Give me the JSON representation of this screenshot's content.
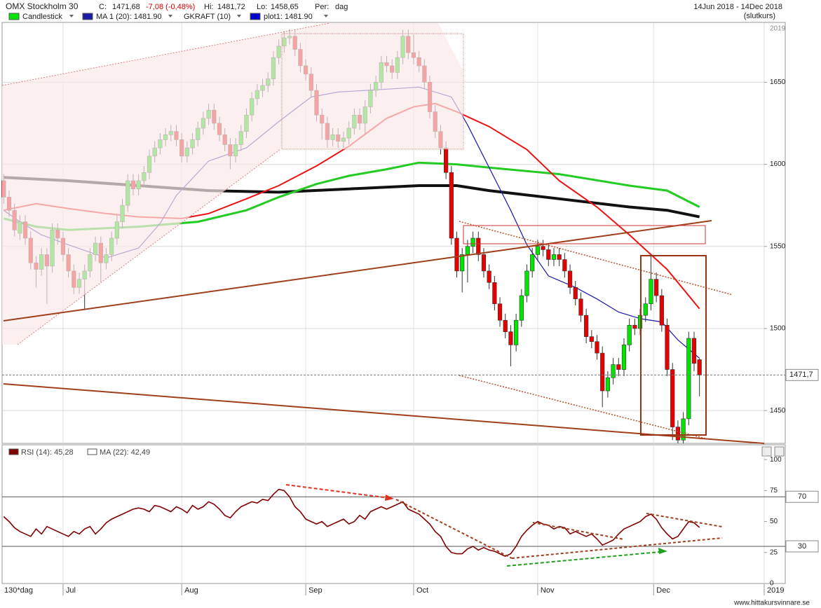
{
  "header": {
    "title": "OMX Stockholm 30",
    "c_label": "C:",
    "c_value": "1471,68",
    "change": "-7,08 (-0,48%)",
    "hi_label": "Hi:",
    "hi_value": "1481,72",
    "lo_label": "Lo:",
    "lo_value": "1458,65",
    "per_label": "Per:",
    "per_value": "dag",
    "date_range": "14Jun 2018 - 14Dec 2018",
    "price_type": "(slutkurs)"
  },
  "chart_data": [
    {
      "type": "candlestick",
      "ylim": [
        1430,
        1686
      ],
      "yticks": [
        1450,
        1500,
        1550,
        1600,
        1650
      ],
      "xlim": [
        -0.3,
        141
      ],
      "grid": true,
      "year_label": "2019",
      "last_label": "1471,7",
      "up_color": "#00e600",
      "down_color": "#e60000",
      "legend": [
        {
          "label": "Candlestick",
          "color": "#00e600"
        },
        {
          "label": "MA 1 (20): 1481.90",
          "color": "#1a1aa6"
        },
        {
          "label": "GKRAFT (10)"
        },
        {
          "label": "plot1: 1481.90",
          "color": "#0000cc"
        }
      ],
      "open": [
        1590,
        1580,
        1572,
        1558,
        1565,
        1555,
        1540,
        1536,
        1545,
        1538,
        1560,
        1555,
        1545,
        1535,
        1525,
        1530,
        1535,
        1545,
        1552,
        1540,
        1545,
        1555,
        1565,
        1575,
        1590,
        1585,
        1590,
        1595,
        1605,
        1610,
        1615,
        1618,
        1620,
        1615,
        1605,
        1610,
        1615,
        1622,
        1628,
        1633,
        1625,
        1618,
        1612,
        1605,
        1612,
        1620,
        1630,
        1640,
        1645,
        1648,
        1652,
        1665,
        1672,
        1677,
        1678,
        1670,
        1660,
        1655,
        1645,
        1630,
        1625,
        1615,
        1618,
        1614,
        1616,
        1622,
        1630,
        1625,
        1635,
        1645,
        1650,
        1662,
        1660,
        1656,
        1665,
        1678,
        1668,
        1665,
        1660,
        1650,
        1632,
        1620,
        1610,
        1595,
        1555,
        1535,
        1545,
        1550,
        1555,
        1545,
        1535,
        1528,
        1515,
        1505,
        1498,
        1490,
        1505,
        1520,
        1535,
        1545,
        1550,
        1548,
        1542,
        1545,
        1542,
        1535,
        1525,
        1518,
        1508,
        1495,
        1492,
        1485,
        1462,
        1470,
        1478,
        1475,
        1490,
        1502,
        1500,
        1508,
        1515,
        1530,
        1520,
        1502,
        1475,
        1440,
        1432,
        1445,
        1494,
        1481
      ],
      "high": [
        1594,
        1584,
        1576,
        1569,
        1569,
        1559,
        1544,
        1549,
        1549,
        1564,
        1564,
        1559,
        1549,
        1539,
        1534,
        1539,
        1549,
        1556,
        1556,
        1549,
        1559,
        1569,
        1579,
        1594,
        1594,
        1594,
        1599,
        1609,
        1614,
        1619,
        1622,
        1624,
        1624,
        1619,
        1614,
        1619,
        1626,
        1632,
        1637,
        1637,
        1629,
        1622,
        1616,
        1616,
        1624,
        1634,
        1644,
        1649,
        1652,
        1656,
        1669,
        1676,
        1681,
        1682,
        1682,
        1674,
        1664,
        1659,
        1649,
        1634,
        1629,
        1622,
        1622,
        1620,
        1626,
        1634,
        1634,
        1639,
        1649,
        1654,
        1666,
        1666,
        1664,
        1669,
        1682,
        1682,
        1679,
        1669,
        1664,
        1654,
        1636,
        1624,
        1614,
        1599,
        1559,
        1549,
        1554,
        1559,
        1559,
        1549,
        1539,
        1532,
        1519,
        1509,
        1502,
        1509,
        1524,
        1539,
        1549,
        1554,
        1554,
        1552,
        1549,
        1549,
        1546,
        1539,
        1529,
        1522,
        1512,
        1499,
        1496,
        1489,
        1474,
        1482,
        1482,
        1494,
        1506,
        1506,
        1512,
        1519,
        1545,
        1534,
        1524,
        1506,
        1479,
        1444,
        1449,
        1498,
        1498,
        1481.72
      ],
      "low": [
        1576,
        1568,
        1556,
        1554,
        1551,
        1536,
        1525,
        1532,
        1515,
        1534,
        1551,
        1541,
        1531,
        1521,
        1521,
        1512,
        1531,
        1541,
        1528,
        1536,
        1541,
        1551,
        1561,
        1571,
        1581,
        1581,
        1586,
        1591,
        1601,
        1606,
        1611,
        1614,
        1611,
        1601,
        1601,
        1606,
        1611,
        1618,
        1624,
        1621,
        1614,
        1608,
        1597,
        1601,
        1608,
        1616,
        1626,
        1636,
        1641,
        1644,
        1648,
        1661,
        1668,
        1673,
        1666,
        1656,
        1651,
        1641,
        1626,
        1615,
        1610,
        1611,
        1610,
        1610,
        1612,
        1618,
        1621,
        1618,
        1631,
        1641,
        1646,
        1656,
        1652,
        1652,
        1661,
        1664,
        1661,
        1656,
        1646,
        1628,
        1616,
        1606,
        1591,
        1551,
        1531,
        1522,
        1528,
        1546,
        1541,
        1531,
        1524,
        1511,
        1501,
        1494,
        1477,
        1486,
        1501,
        1516,
        1531,
        1541,
        1544,
        1538,
        1538,
        1538,
        1531,
        1521,
        1514,
        1504,
        1491,
        1488,
        1481,
        1452,
        1458,
        1466,
        1471,
        1471,
        1486,
        1496,
        1496,
        1504,
        1511,
        1516,
        1498,
        1471,
        1432,
        1430,
        1430,
        1441,
        1474,
        1458.65
      ],
      "close": [
        1580,
        1572,
        1560,
        1565,
        1555,
        1540,
        1536,
        1545,
        1538,
        1560,
        1555,
        1545,
        1535,
        1525,
        1530,
        1535,
        1545,
        1552,
        1540,
        1545,
        1555,
        1565,
        1575,
        1590,
        1585,
        1590,
        1595,
        1605,
        1610,
        1615,
        1618,
        1620,
        1615,
        1605,
        1610,
        1615,
        1622,
        1628,
        1633,
        1625,
        1618,
        1612,
        1605,
        1612,
        1620,
        1630,
        1640,
        1645,
        1648,
        1652,
        1665,
        1672,
        1677,
        1678,
        1670,
        1660,
        1655,
        1645,
        1630,
        1625,
        1615,
        1618,
        1614,
        1616,
        1622,
        1630,
        1625,
        1635,
        1645,
        1650,
        1662,
        1660,
        1656,
        1665,
        1678,
        1668,
        1665,
        1660,
        1650,
        1632,
        1620,
        1610,
        1595,
        1555,
        1535,
        1545,
        1550,
        1555,
        1545,
        1535,
        1528,
        1515,
        1505,
        1498,
        1490,
        1505,
        1520,
        1535,
        1545,
        1550,
        1548,
        1542,
        1545,
        1542,
        1535,
        1525,
        1518,
        1508,
        1495,
        1492,
        1485,
        1462,
        1470,
        1478,
        1475,
        1490,
        1502,
        1500,
        1508,
        1515,
        1530,
        1520,
        1502,
        1475,
        1440,
        1432,
        1445,
        1494,
        1478.76,
        1471.68
      ],
      "series": [
        {
          "color": "#111111",
          "width": 4,
          "x": [
            0,
            12,
            25,
            38,
            51,
            64,
            77,
            84,
            90,
            103,
            116,
            123,
            129
          ],
          "values": [
            1592,
            1590,
            1587,
            1584,
            1583,
            1585,
            1587,
            1587,
            1584,
            1579,
            1574,
            1572,
            1568
          ]
        },
        {
          "color": "#22cc22",
          "width": 3,
          "x": [
            0,
            6,
            12,
            25,
            36,
            45,
            51,
            58,
            64,
            71,
            77,
            84,
            90,
            103,
            116,
            123,
            129
          ],
          "values": [
            1567,
            1562,
            1560,
            1562,
            1565,
            1572,
            1580,
            1588,
            1593,
            1597,
            1601,
            1600,
            1598,
            1594,
            1587,
            1584,
            1574
          ]
        },
        {
          "color": "#ee1111",
          "width": 2,
          "x": [
            0,
            6,
            12,
            19,
            25,
            33,
            38,
            45,
            51,
            58,
            64,
            71,
            76,
            80,
            84,
            90,
            97,
            103,
            110,
            116,
            123,
            129
          ],
          "values": [
            1572,
            1576,
            1573,
            1570,
            1568,
            1567,
            1570,
            1579,
            1587,
            1599,
            1611,
            1628,
            1635,
            1637,
            1632,
            1623,
            1609,
            1590,
            1574,
            1557,
            1536,
            1512
          ]
        },
        {
          "color": "#1a1aa6",
          "width": 1.2,
          "x": [
            0,
            3,
            7,
            12,
            19,
            25,
            29,
            32,
            38,
            45,
            51,
            57,
            62,
            67,
            72,
            77,
            83,
            86,
            90,
            94,
            97,
            101,
            106,
            110,
            114,
            118,
            122,
            125,
            129
          ],
          "values": [
            1572,
            1565,
            1557,
            1551,
            1543,
            1549,
            1564,
            1581,
            1602,
            1610,
            1626,
            1641,
            1644,
            1645,
            1646,
            1647,
            1641,
            1624,
            1598,
            1572,
            1551,
            1532,
            1525,
            1518,
            1510,
            1506,
            1504,
            1493,
            1481.9
          ]
        }
      ]
    },
    {
      "type": "line",
      "ylim": [
        0,
        112
      ],
      "yticks": [
        0,
        25,
        50,
        75,
        100
      ],
      "ref_lines": [
        70,
        30
      ],
      "xlim": [
        -0.3,
        141
      ],
      "period_label": "130*dag",
      "xticks": [
        {
          "value": 11,
          "label": "Jul"
        },
        {
          "value": 33,
          "label": "Aug"
        },
        {
          "value": 56,
          "label": "Sep"
        },
        {
          "value": 76,
          "label": "Oct"
        },
        {
          "value": 99,
          "label": "Nov"
        },
        {
          "value": 120.5,
          "label": "Dec"
        },
        {
          "value": 141,
          "label": "2019"
        }
      ],
      "legend": [
        {
          "label": "RSI (14): 45,28",
          "color": "#800000"
        },
        {
          "label": "MA (22): 42,49",
          "color": "#ffffff"
        }
      ],
      "series": [
        {
          "color": "#800000",
          "values": [
            54,
            50,
            45,
            42,
            40,
            38,
            44,
            40,
            46,
            44,
            42,
            40,
            38,
            42,
            40,
            44,
            46,
            40,
            44,
            49,
            52,
            54,
            56,
            58,
            60,
            61,
            60,
            58,
            63,
            62,
            60,
            58,
            62,
            60,
            57,
            63,
            60,
            62,
            66,
            64,
            60,
            55,
            53,
            58,
            62,
            64,
            66,
            65,
            68,
            67,
            72,
            76,
            75,
            70,
            62,
            58,
            52,
            50,
            48,
            50,
            46,
            48,
            50,
            52,
            48,
            50,
            55,
            52,
            58,
            60,
            62,
            60,
            62,
            64,
            66,
            60,
            58,
            56,
            52,
            48,
            42,
            38,
            30,
            25,
            24,
            24,
            28,
            30,
            27,
            29,
            27,
            26,
            24,
            22,
            24,
            30,
            38,
            43,
            47,
            50,
            48,
            47,
            44,
            46,
            45,
            40,
            42,
            40,
            38,
            40,
            36,
            31,
            33,
            35,
            40,
            44,
            46,
            48,
            50,
            54,
            56,
            52,
            45,
            40,
            36,
            38,
            44,
            50,
            49,
            45.28
          ]
        }
      ]
    }
  ],
  "footer": "www.hittakursvinnare.se"
}
